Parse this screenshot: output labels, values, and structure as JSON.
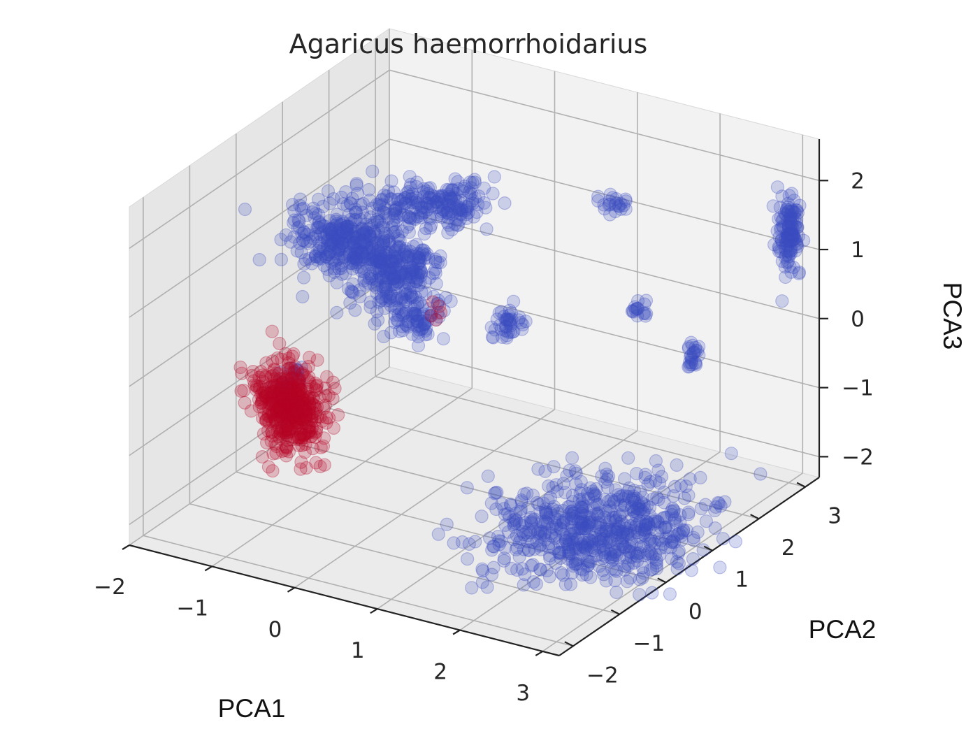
{
  "chart_data": {
    "type": "scatter",
    "projection": "3d",
    "title": "Agaricus haemorrhoidarius",
    "xlabel": "PCA1",
    "ylabel": "PCA2",
    "zlabel": "PCA3",
    "xlim": [
      -2,
      3.2
    ],
    "ylim": [
      -2.3,
      3.3
    ],
    "zlim": [
      -2.3,
      2.6
    ],
    "x_ticks": [
      "−2",
      "−1",
      "0",
      "1",
      "2",
      "3"
    ],
    "y_ticks": [
      "−2",
      "−1",
      "0",
      "1",
      "2",
      "3"
    ],
    "z_ticks": [
      "−2",
      "−1",
      "0",
      "1",
      "2"
    ],
    "grid": true,
    "legend": null,
    "colors": {
      "class_a": "#3b4cc0",
      "class_b": "#b40426"
    },
    "marker_alpha": 0.22,
    "series": [
      {
        "color": "#3b4cc0",
        "clusters": [
          {
            "x": -1.4,
            "y": 1.2,
            "z": 0.7,
            "sx": 0.28,
            "sy": 0.25,
            "sz": 0.22,
            "n": 300
          },
          {
            "x": -0.85,
            "y": 1.35,
            "z": 0.35,
            "sx": 0.22,
            "sy": 0.25,
            "sz": 0.22,
            "n": 260
          },
          {
            "x": -0.55,
            "y": 2.0,
            "z": 1.1,
            "sx": 0.18,
            "sy": 0.3,
            "sz": 0.12,
            "n": 140
          },
          {
            "x": -1.2,
            "y": 2.0,
            "z": 0.9,
            "sx": 0.22,
            "sy": 0.2,
            "sz": 0.15,
            "n": 80
          },
          {
            "x": -0.4,
            "y": 1.0,
            "z": -0.05,
            "sx": 0.15,
            "sy": 0.15,
            "sz": 0.15,
            "n": 90
          },
          {
            "x": 0.55,
            "y": 1.3,
            "z": 0.0,
            "sx": 0.08,
            "sy": 0.1,
            "sz": 0.15,
            "n": 40
          },
          {
            "x": 1.6,
            "y": 1.7,
            "z": 1.9,
            "sx": 0.06,
            "sy": 0.06,
            "sz": 0.06,
            "n": 22
          },
          {
            "x": 2.35,
            "y": 2.1,
            "z": -0.2,
            "sx": 0.03,
            "sy": 0.05,
            "sz": 0.12,
            "n": 25
          },
          {
            "x": 1.75,
            "y": 2.05,
            "z": 0.25,
            "sx": 0.06,
            "sy": 0.05,
            "sz": 0.07,
            "n": 16
          },
          {
            "x": 3.0,
            "y": 3.0,
            "z": 1.25,
            "sx": 0.05,
            "sy": 0.07,
            "sz": 0.28,
            "n": 130
          },
          {
            "x": -1.35,
            "y": 0.0,
            "z": -0.75,
            "sx": 0.06,
            "sy": 0.18,
            "sz": 0.05,
            "n": 22
          },
          {
            "x": 2.1,
            "y": 0.5,
            "z": -2.1,
            "sx": 0.55,
            "sy": 0.7,
            "sz": 0.06,
            "n": 650
          }
        ]
      },
      {
        "color": "#b40426",
        "clusters": [
          {
            "x": -1.15,
            "y": -0.35,
            "z": -0.95,
            "sx": 0.2,
            "sy": 0.06,
            "sz": 0.32,
            "n": 480
          },
          {
            "x": -0.3,
            "y": 1.2,
            "z": 0.0,
            "sx": 0.05,
            "sy": 0.05,
            "sz": 0.05,
            "n": 5
          }
        ]
      }
    ]
  }
}
